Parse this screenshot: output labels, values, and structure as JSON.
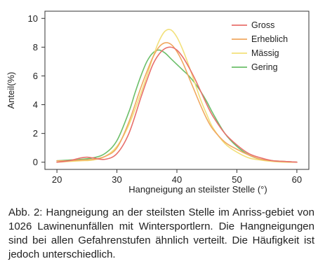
{
  "chart_data": {
    "type": "line",
    "xlabel": "Hangneigung an steilster Stelle (°)",
    "ylabel": "Anteil(%)",
    "xlim": [
      18,
      62
    ],
    "ylim": [
      -0.5,
      10.5
    ],
    "xticks": [
      20,
      30,
      40,
      50,
      60
    ],
    "yticks": [
      0,
      2,
      4,
      6,
      8,
      10
    ],
    "grid": false,
    "legend_position": "top-right",
    "series": [
      {
        "name": "Gross",
        "color": "#e8706c",
        "x": [
          20,
          22,
          24,
          25,
          26,
          28,
          30,
          32,
          34,
          35,
          36,
          37,
          38,
          39,
          40,
          41,
          42,
          43,
          44,
          45,
          46,
          48,
          50,
          52,
          54,
          56,
          58,
          60
        ],
        "y": [
          0.0,
          0.1,
          0.3,
          0.35,
          0.3,
          0.2,
          0.6,
          2.0,
          4.5,
          5.7,
          6.8,
          7.5,
          7.9,
          8.0,
          7.8,
          7.3,
          6.6,
          5.8,
          4.9,
          4.0,
          3.2,
          2.0,
          1.2,
          0.6,
          0.3,
          0.1,
          0.05,
          0.0
        ]
      },
      {
        "name": "Erheblich",
        "color": "#f0a860",
        "x": [
          20,
          22,
          24,
          26,
          28,
          30,
          32,
          34,
          35,
          36,
          37,
          38,
          39,
          40,
          41,
          42,
          43,
          44,
          45,
          46,
          48,
          50,
          52,
          54,
          56,
          58,
          60
        ],
        "y": [
          0.1,
          0.1,
          0.15,
          0.2,
          0.4,
          1.0,
          2.8,
          5.2,
          6.3,
          7.3,
          8.0,
          8.3,
          8.2,
          7.7,
          6.9,
          5.9,
          4.9,
          3.9,
          3.0,
          2.3,
          1.4,
          0.9,
          0.5,
          0.2,
          0.1,
          0.05,
          0.0
        ]
      },
      {
        "name": "Mässig",
        "color": "#f2e07a",
        "x": [
          20,
          22,
          24,
          26,
          28,
          30,
          32,
          34,
          35,
          36,
          37,
          38,
          39,
          40,
          41,
          42,
          43,
          44,
          45,
          46,
          48,
          50,
          52,
          54,
          56,
          58,
          60
        ],
        "y": [
          0.0,
          0.05,
          0.1,
          0.15,
          0.4,
          1.1,
          2.6,
          4.8,
          6.0,
          7.3,
          8.4,
          9.1,
          9.2,
          8.7,
          7.8,
          6.7,
          5.5,
          4.3,
          3.3,
          2.4,
          1.3,
          0.7,
          0.3,
          0.15,
          0.05,
          0.0,
          0.0
        ]
      },
      {
        "name": "Gering",
        "color": "#6cbf6a",
        "x": [
          20,
          22,
          24,
          26,
          28,
          30,
          32,
          33,
          34,
          35,
          36,
          37,
          38,
          39,
          40,
          41,
          42,
          43,
          44,
          45,
          46,
          48,
          50,
          52,
          54,
          56,
          58,
          60
        ],
        "y": [
          0.1,
          0.15,
          0.2,
          0.3,
          0.6,
          1.5,
          3.5,
          4.8,
          6.0,
          7.0,
          7.6,
          7.8,
          7.6,
          7.2,
          6.8,
          6.4,
          6.0,
          5.5,
          4.9,
          4.2,
          3.4,
          2.0,
          1.1,
          0.5,
          0.2,
          0.1,
          0.05,
          0.0
        ]
      }
    ]
  },
  "caption": "Abb. 2: Hangneigung an der steilsten Stelle im Anriss-gebiet von 1026 Lawinenunfällen mit Wintersportlern. Die Hangneigungen sind bei allen Gefahrenstufen ähnlich verteilt. Die Häufigkeit ist jedoch unterschiedlich."
}
